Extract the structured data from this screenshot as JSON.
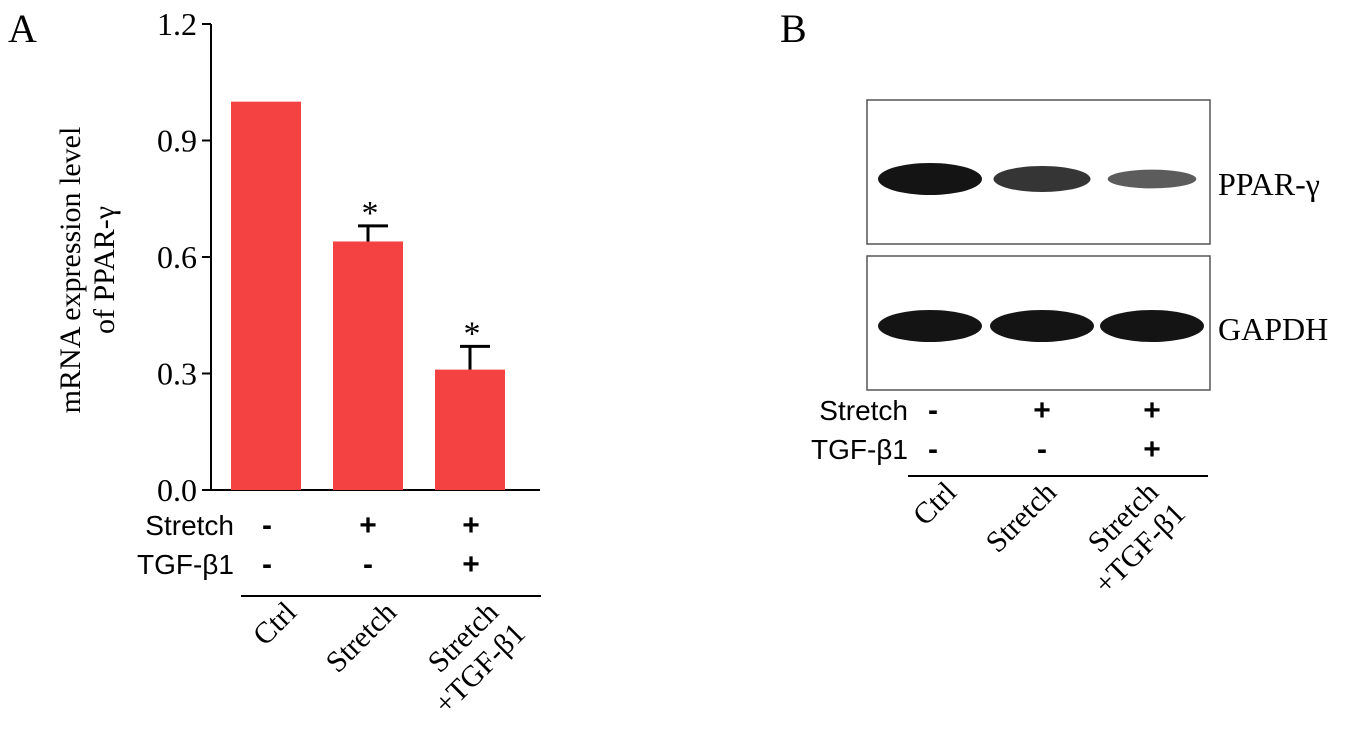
{
  "panel_a": {
    "label": "A",
    "ylabel_line1": "mRNA expression level",
    "ylabel_line2": "of PPAR-γ",
    "rows": [
      {
        "name": "Stretch",
        "marks": [
          "-",
          "+",
          "+"
        ]
      },
      {
        "name": "TGF-β1",
        "marks": [
          "-",
          "-",
          "+"
        ]
      }
    ],
    "group_labels": [
      [
        "Ctrl"
      ],
      [
        "Stretch"
      ],
      [
        "Stretch",
        "+TGF-β1"
      ]
    ]
  },
  "chart_data": {
    "type": "bar",
    "categories": [
      "Ctrl",
      "Stretch",
      "Stretch+TGF-β1"
    ],
    "values": [
      1.0,
      0.64,
      0.31
    ],
    "errors": [
      0,
      0.04,
      0.06
    ],
    "significance": [
      "",
      "*",
      "*"
    ],
    "ylabel": "mRNA expression level of PPAR-γ",
    "ylim": [
      0,
      1.2
    ],
    "yticks": [
      "0.0",
      "0.3",
      "0.6",
      "0.9",
      "1.2"
    ],
    "ytick_values": [
      0,
      0.3,
      0.6,
      0.9,
      1.2
    ],
    "grid": false,
    "bar_color": "#f44141"
  },
  "panel_b": {
    "label": "B",
    "blots": [
      {
        "name": "PPAR-γ",
        "band_intensity": [
          1.0,
          0.75,
          0.45
        ]
      },
      {
        "name": "GAPDH",
        "band_intensity": [
          1.0,
          1.0,
          1.0
        ]
      }
    ],
    "rows": [
      {
        "name": "Stretch",
        "marks": [
          "-",
          "+",
          "+"
        ]
      },
      {
        "name": "TGF-β1",
        "marks": [
          "-",
          "-",
          "+"
        ]
      }
    ],
    "group_labels": [
      [
        "Ctrl"
      ],
      [
        "Stretch"
      ],
      [
        "Stretch",
        "+TGF-β1"
      ]
    ]
  }
}
